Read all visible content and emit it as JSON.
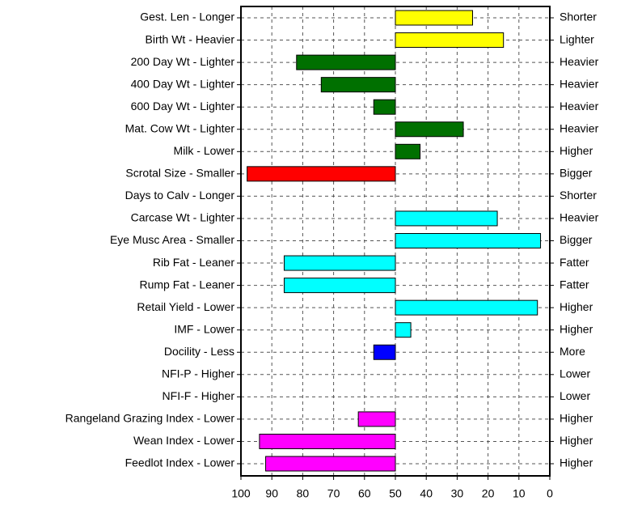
{
  "chart_data": {
    "type": "bar",
    "orientation": "horizontal",
    "categories": [
      "Gest. Len - Longer",
      "Birth Wt - Heavier",
      "200 Day Wt - Lighter",
      "400 Day Wt - Lighter",
      "600 Day Wt - Lighter",
      "Mat. Cow Wt - Lighter",
      "Milk - Lower",
      "Scrotal Size - Smaller",
      "Days to Calv - Longer",
      "Carcase Wt - Lighter",
      "Eye Musc Area - Smaller",
      "Rib Fat - Leaner",
      "Rump Fat - Leaner",
      "Retail Yield - Lower",
      "IMF - Lower",
      "Docility - Less",
      "NFI-P - Higher",
      "NFI-F - Higher",
      "Rangeland Grazing Index - Lower",
      "Wean Index - Lower",
      "Feedlot Index - Lower"
    ],
    "right_labels": [
      "Shorter",
      "Lighter",
      "Heavier",
      "Heavier",
      "Heavier",
      "Heavier",
      "Higher",
      "Bigger",
      "Shorter",
      "Heavier",
      "Bigger",
      "Fatter",
      "Fatter",
      "Higher",
      "Higher",
      "More",
      "Lower",
      "Lower",
      "Higher",
      "Higher",
      "Higher"
    ],
    "values": [
      25,
      15,
      82,
      74,
      57,
      28,
      42,
      98,
      null,
      17,
      3,
      86,
      86,
      4,
      45,
      57,
      null,
      null,
      62,
      94,
      92
    ],
    "colors": [
      "#ffff00",
      "#ffff00",
      "#007000",
      "#007000",
      "#007000",
      "#007000",
      "#007000",
      "#ff0000",
      null,
      "#00ffff",
      "#00ffff",
      "#00ffff",
      "#00ffff",
      "#00ffff",
      "#00ffff",
      "#0000ff",
      null,
      null,
      "#ff00ff",
      "#ff00ff",
      "#ff00ff"
    ],
    "bar_origin": 50,
    "xlim": [
      100,
      0
    ],
    "xticks": [
      100,
      90,
      80,
      70,
      60,
      50,
      40,
      30,
      20,
      10,
      0
    ],
    "grid": true
  }
}
